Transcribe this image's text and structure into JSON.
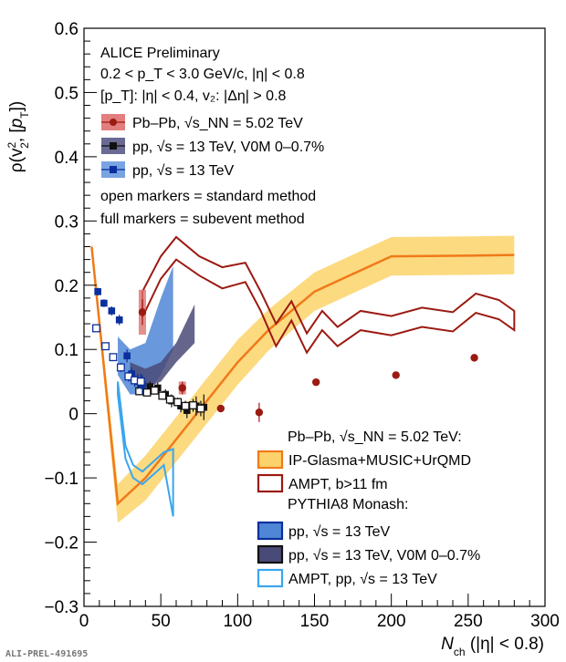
{
  "chart_data": {
    "type": "scatter",
    "title": "ALICE Preliminary",
    "xlabel_main": "N",
    "xlabel_sub": "ch",
    "xlabel_rest": " (|η| < 0.8)",
    "ylabel": "ρ(v₂², [p_T])",
    "xlim": [
      0,
      300
    ],
    "ylim": [
      -0.3,
      0.6
    ],
    "x_ticks": [
      0,
      50,
      100,
      150,
      200,
      250,
      300
    ],
    "y_ticks": [
      -0.3,
      -0.2,
      -0.1,
      0,
      0.1,
      0.2,
      0.3,
      0.4,
      0.5,
      0.6
    ],
    "x_tick_labels": [
      "0",
      "50",
      "100",
      "150",
      "200",
      "250",
      "300"
    ],
    "y_tick_labels": [
      "−0.3",
      "−0.2",
      "−0.1",
      "0",
      "0.1",
      "0.2",
      "0.3",
      "0.4",
      "0.5",
      "0.6"
    ],
    "info_lines": [
      "0.2 < p_T < 3.0 GeV/c, |η| < 0.8",
      "[p_T]: |η| < 0.4, v₂: |Δη| > 0.8"
    ],
    "notes": [
      "open markers = standard method",
      "full markers = subevent method"
    ],
    "legend_top": [
      {
        "label": "Pb–Pb, √s_NN = 5.02 TeV",
        "color": "#9b1a12",
        "marker": "circle",
        "box": "#e07070"
      },
      {
        "label": "pp, √s = 13 TeV, V0M 0–0.7%",
        "color": "#111111",
        "marker": "square",
        "box": "#5a5a8a"
      },
      {
        "label": "pp, √s = 13 TeV",
        "color": "#0b2f9c",
        "marker": "square",
        "box": "#6a9ae0"
      }
    ],
    "legend_bottom_header_1": "Pb–Pb, √s_NN = 5.02 TeV:",
    "legend_bottom_header_2": "PYTHIA8 Monash:",
    "legend_bottom": [
      {
        "label": "IP-Glasma+MUSIC+UrQMD",
        "fill": "#fcd36a",
        "stroke": "#f07a1a"
      },
      {
        "label": "AMPT, b>11 fm",
        "fill": "none",
        "stroke": "#9b1a12"
      },
      {
        "label": "pp, √s = 13 TeV",
        "fill": "#4f86d6",
        "stroke": "#0b2f9c"
      },
      {
        "label": "pp, √s = 13 TeV, V0M 0–0.7%",
        "fill": "#4a4a78",
        "stroke": "#111111"
      },
      {
        "label": "AMPT, pp, √s = 13 TeV",
        "fill": "none",
        "stroke": "#3aa6ee"
      }
    ],
    "series": [
      {
        "name": "Pb–Pb, √s_NN = 5.02 TeV",
        "marker": "circle-full",
        "color": "#9b1a12",
        "x": [
          38,
          64,
          89,
          114,
          151,
          203,
          254
        ],
        "y": [
          0.158,
          0.04,
          0.008,
          0.002,
          0.049,
          0.06,
          0.087
        ],
        "err": [
          0.02,
          0.01,
          0.005,
          0.015,
          0.004,
          0.004,
          0.004
        ],
        "syst": [
          0.035,
          0.01,
          0,
          0,
          0,
          0,
          0
        ]
      },
      {
        "name": "pp, √s = 13 TeV, V0M 0–0.7%",
        "marker": "square-full",
        "color": "#111111",
        "x": [
          37,
          43,
          48,
          53,
          57,
          63,
          67,
          73,
          78
        ],
        "y": [
          0.04,
          0.042,
          0.04,
          0.03,
          0.02,
          0.012,
          0.005,
          0.012,
          0.01
        ],
        "err": [
          0.008,
          0.008,
          0.008,
          0.008,
          0.01,
          0.01,
          0.012,
          0.015,
          0.02
        ]
      },
      {
        "name": "pp, √s = 13 TeV, V0M 0–0.7% (standard)",
        "marker": "square-open",
        "color": "#111111",
        "x": [
          36,
          41,
          46,
          51,
          56,
          61,
          66,
          71,
          76
        ],
        "y": [
          0.035,
          0.033,
          0.036,
          0.028,
          0.022,
          0.018,
          0.012,
          0.013,
          0.008
        ],
        "err": [
          0.006,
          0.006,
          0.006,
          0.006,
          0.007,
          0.007,
          0.008,
          0.01,
          0.012
        ]
      },
      {
        "name": "pp, √s = 13 TeV",
        "marker": "square-full",
        "color": "#0b2f9c",
        "x": [
          9,
          13,
          18,
          23,
          28,
          31,
          35,
          38
        ],
        "y": [
          0.19,
          0.172,
          0.16,
          0.146,
          0.09,
          0.062,
          0.05,
          0.045
        ],
        "err": [
          0.006,
          0.006,
          0.007,
          0.008,
          0.01,
          0.01,
          0.012,
          0.015
        ]
      },
      {
        "name": "pp, √s = 13 TeV (standard)",
        "marker": "square-open",
        "color": "#0b2f9c",
        "x": [
          8,
          14,
          19,
          24,
          29,
          33,
          37
        ],
        "y": [
          0.133,
          0.105,
          0.088,
          0.072,
          0.058,
          0.052,
          0.05
        ],
        "err": [
          0.005,
          0.005,
          0.006,
          0.007,
          0.008,
          0.01,
          0.012
        ]
      }
    ],
    "bands": [
      {
        "name": "IP-Glasma+MUSIC+UrQMD",
        "fill": "#fcd36a",
        "stroke": "#f07a1a",
        "x": [
          5,
          22,
          40,
          60,
          80,
          100,
          120,
          150,
          200,
          250,
          280
        ],
        "y": [
          0.26,
          -0.14,
          -0.1,
          -0.04,
          0.02,
          0.08,
          0.13,
          0.19,
          0.245,
          0.246,
          0.247
        ],
        "half_width": [
          0.01,
          0.03,
          0.035,
          0.035,
          0.035,
          0.035,
          0.032,
          0.03,
          0.03,
          0.03,
          0.03
        ]
      },
      {
        "name": "pp, √s = 13 TeV (PYTHIA8)",
        "fill": "#4f86d6",
        "upper_x": [
          22,
          30,
          40,
          50,
          58
        ],
        "upper_y": [
          0.12,
          0.1,
          0.11,
          0.18,
          0.23
        ],
        "lower_x": [
          22,
          30,
          40,
          50,
          58
        ],
        "lower_y": [
          0.06,
          0.03,
          0.03,
          0.06,
          0.1
        ]
      },
      {
        "name": "pp, √s = 13 TeV, V0M 0–0.7% (PYTHIA8)",
        "fill": "#4a4a78",
        "upper_x": [
          30,
          40,
          50,
          60,
          72
        ],
        "upper_y": [
          0.08,
          0.07,
          0.08,
          0.11,
          0.17
        ],
        "lower_x": [
          30,
          40,
          50,
          60,
          72
        ],
        "lower_y": [
          0.05,
          0.04,
          0.05,
          0.08,
          0.11
        ]
      }
    ],
    "lines": [
      {
        "name": "AMPT, b>11 fm",
        "color": "#9b1a12",
        "upper_x": [
          38,
          50,
          60,
          75,
          90,
          105,
          115,
          125,
          135,
          145,
          155,
          165,
          180,
          200,
          220,
          240,
          255,
          270,
          280
        ],
        "upper_y": [
          0.19,
          0.245,
          0.275,
          0.245,
          0.228,
          0.235,
          0.19,
          0.14,
          0.175,
          0.125,
          0.16,
          0.135,
          0.16,
          0.152,
          0.165,
          0.158,
          0.187,
          0.177,
          0.16
        ],
        "lower_x": [
          38,
          50,
          60,
          75,
          90,
          105,
          115,
          125,
          135,
          145,
          155,
          165,
          180,
          200,
          220,
          240,
          255,
          270,
          280
        ],
        "lower_y": [
          0.15,
          0.21,
          0.24,
          0.215,
          0.195,
          0.205,
          0.16,
          0.105,
          0.145,
          0.095,
          0.13,
          0.105,
          0.13,
          0.122,
          0.135,
          0.128,
          0.157,
          0.147,
          0.13
        ]
      },
      {
        "name": "AMPT, pp, √s = 13 TeV",
        "color": "#3aa6ee",
        "upper_x": [
          22,
          27,
          32,
          38,
          45,
          52,
          58
        ],
        "upper_y": [
          0.05,
          -0.05,
          -0.08,
          -0.09,
          -0.075,
          -0.06,
          -0.055
        ],
        "lower_x": [
          22,
          27,
          32,
          38,
          45,
          52,
          58
        ],
        "lower_y": [
          0.03,
          -0.07,
          -0.1,
          -0.11,
          -0.095,
          -0.08,
          -0.16
        ]
      }
    ]
  },
  "footer": "ALI-PREL-491695"
}
